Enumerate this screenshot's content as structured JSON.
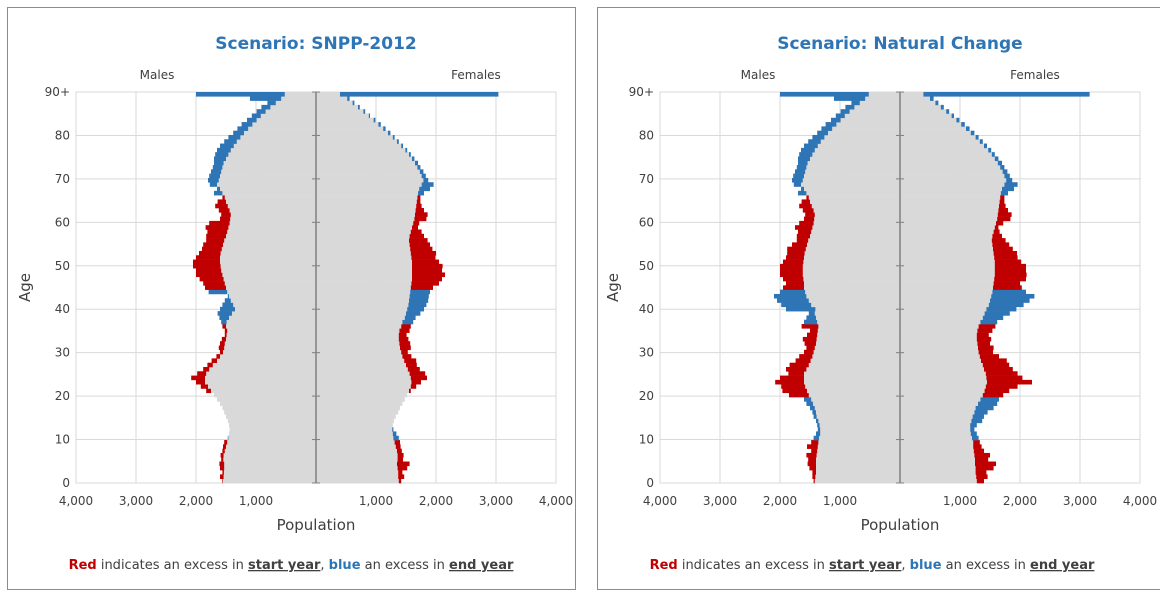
{
  "chart_data": [
    {
      "type": "bar",
      "orientation": "horizontal",
      "title": "Scenario: SNPP-2012",
      "left_label": "Males",
      "right_label": "Females",
      "ylabel": "Age",
      "xlabel": "Population",
      "y_ticks": [
        "0",
        "10",
        "20",
        "30",
        "40",
        "50",
        "60",
        "70",
        "80",
        "90+"
      ],
      "x_ticks": [
        "4,000",
        "3,000",
        "2,000",
        "1,000",
        "",
        "1,000",
        "2,000",
        "3,000",
        "4,000"
      ],
      "xlim": [
        -4000,
        4000
      ],
      "ylim": [
        0,
        90
      ],
      "grid": true,
      "legend": "none",
      "colors": {
        "base": "#d9d9d9",
        "start_excess": "#c00000",
        "end_excess": "#2e75b6"
      },
      "caption": {
        "red": "Red",
        "t1": " indicates an excess in ",
        "start": "start year",
        "t2": ", ",
        "blue": "blue",
        "t3": " an excess in ",
        "end": "end year"
      },
      "series": [
        {
          "name": "Males",
          "shared": [
            1550,
            1540,
            1535,
            1530,
            1530,
            1545,
            1540,
            1520,
            1500,
            1480,
            1460,
            1450,
            1440,
            1450,
            1470,
            1500,
            1530,
            1560,
            1600,
            1650,
            1700,
            1750,
            1800,
            1850,
            1850,
            1830,
            1780,
            1720,
            1650,
            1600,
            1550,
            1530,
            1520,
            1500,
            1490,
            1480,
            1500,
            1490,
            1450,
            1400,
            1350,
            1380,
            1420,
            1450,
            1480,
            1500,
            1520,
            1540,
            1560,
            1580,
            1590,
            1600,
            1600,
            1590,
            1570,
            1550,
            1530,
            1500,
            1480,
            1460,
            1440,
            1430,
            1420,
            1440,
            1470,
            1500,
            1520,
            1560,
            1600,
            1650,
            1620,
            1600,
            1580,
            1560,
            1540,
            1500,
            1460,
            1420,
            1370,
            1320,
            1260,
            1200,
            1130,
            1060,
            990,
            920,
            840,
            760,
            670,
            580,
            520
          ],
          "ends": [
            1560,
            1600,
            1560,
            1600,
            1610,
            1580,
            1590,
            1560,
            1550,
            1530,
            1470,
            1440,
            1390,
            1370,
            1360,
            1390,
            1430,
            1460,
            1530,
            1600,
            1690,
            1830,
            1920,
            2000,
            2080,
            1980,
            1880,
            1810,
            1740,
            1660,
            1600,
            1620,
            1600,
            1570,
            1520,
            1520,
            1560,
            1580,
            1610,
            1640,
            1600,
            1560,
            1520,
            1470,
            1790,
            1850,
            1880,
            1940,
            2000,
            2000,
            2050,
            2050,
            2000,
            1950,
            1900,
            1880,
            1830,
            1830,
            1810,
            1840,
            1780,
            1600,
            1580,
            1620,
            1680,
            1640,
            1560,
            1700,
            1650,
            1770,
            1800,
            1780,
            1750,
            1720,
            1700,
            1700,
            1680,
            1650,
            1600,
            1530,
            1460,
            1380,
            1310,
            1240,
            1150,
            1070,
            990,
            910,
            810,
            1100,
            2000
          ]
        },
        {
          "name": "Females",
          "shared": [
            1380,
            1370,
            1370,
            1360,
            1350,
            1360,
            1360,
            1350,
            1330,
            1310,
            1290,
            1280,
            1270,
            1280,
            1300,
            1330,
            1370,
            1400,
            1440,
            1480,
            1520,
            1550,
            1580,
            1590,
            1580,
            1560,
            1530,
            1500,
            1470,
            1440,
            1420,
            1400,
            1390,
            1380,
            1380,
            1390,
            1420,
            1440,
            1480,
            1500,
            1520,
            1540,
            1550,
            1560,
            1570,
            1580,
            1590,
            1600,
            1600,
            1600,
            1600,
            1600,
            1590,
            1580,
            1570,
            1560,
            1550,
            1560,
            1580,
            1600,
            1620,
            1640,
            1650,
            1660,
            1670,
            1680,
            1690,
            1700,
            1720,
            1760,
            1790,
            1760,
            1730,
            1690,
            1650,
            1600,
            1550,
            1490,
            1420,
            1350,
            1280,
            1200,
            1120,
            1040,
            960,
            880,
            790,
            700,
            610,
            520,
            400
          ],
          "ends": [
            1420,
            1470,
            1440,
            1520,
            1560,
            1450,
            1460,
            1430,
            1410,
            1400,
            1380,
            1340,
            1290,
            1270,
            1300,
            1330,
            1350,
            1380,
            1410,
            1440,
            1490,
            1580,
            1670,
            1750,
            1850,
            1820,
            1730,
            1680,
            1670,
            1590,
            1530,
            1580,
            1570,
            1540,
            1510,
            1560,
            1580,
            1620,
            1660,
            1740,
            1800,
            1840,
            1870,
            1880,
            1900,
            1950,
            2050,
            2100,
            2150,
            2100,
            2110,
            2050,
            1990,
            2000,
            1940,
            1900,
            1860,
            1800,
            1760,
            1700,
            1720,
            1840,
            1860,
            1800,
            1760,
            1740,
            1740,
            1800,
            1900,
            1960,
            1870,
            1830,
            1790,
            1740,
            1700,
            1640,
            1580,
            1520,
            1450,
            1380,
            1310,
            1240,
            1160,
            1080,
            990,
            900,
            820,
            730,
            640,
            560,
            3040
          ]
        }
      ]
    },
    {
      "type": "bar",
      "orientation": "horizontal",
      "title": "Scenario: Natural Change",
      "left_label": "Males",
      "right_label": "Females",
      "ylabel": "Age",
      "xlabel": "Population",
      "y_ticks": [
        "0",
        "10",
        "20",
        "30",
        "40",
        "50",
        "60",
        "70",
        "80",
        "90+"
      ],
      "x_ticks": [
        "4,000",
        "3,000",
        "2,000",
        "1,000",
        "",
        "1,000",
        "2,000",
        "3,000",
        "4,000"
      ],
      "xlim": [
        -4000,
        4000
      ],
      "ylim": [
        0,
        90
      ],
      "grid": true,
      "legend": "none",
      "colors": {
        "base": "#d9d9d9",
        "start_excess": "#c00000",
        "end_excess": "#2e75b6"
      },
      "caption": {
        "red": "Red",
        "t1": " indicates an excess in ",
        "start": "start year",
        "t2": ", ",
        "blue": "blue",
        "t3": " an excess in ",
        "end": "end year"
      },
      "series": [
        {
          "name": "Males",
          "shared": [
            1420,
            1410,
            1400,
            1400,
            1400,
            1400,
            1390,
            1380,
            1370,
            1360,
            1350,
            1330,
            1330,
            1340,
            1360,
            1390,
            1400,
            1420,
            1450,
            1480,
            1520,
            1550,
            1580,
            1600,
            1600,
            1600,
            1560,
            1520,
            1490,
            1460,
            1440,
            1420,
            1400,
            1390,
            1380,
            1370,
            1360,
            1380,
            1400,
            1420,
            1410,
            1480,
            1520,
            1560,
            1580,
            1600,
            1600,
            1610,
            1620,
            1620,
            1620,
            1610,
            1600,
            1590,
            1570,
            1550,
            1530,
            1500,
            1480,
            1460,
            1440,
            1430,
            1420,
            1440,
            1470,
            1500,
            1520,
            1560,
            1600,
            1650,
            1620,
            1600,
            1580,
            1560,
            1540,
            1500,
            1460,
            1420,
            1370,
            1320,
            1260,
            1200,
            1130,
            1060,
            990,
            920,
            840,
            760,
            670,
            580,
            520
          ],
          "ends": [
            1440,
            1460,
            1460,
            1510,
            1540,
            1530,
            1560,
            1480,
            1550,
            1480,
            1440,
            1400,
            1370,
            1380,
            1400,
            1440,
            1460,
            1500,
            1560,
            1600,
            1850,
            1960,
            1980,
            2080,
            2000,
            1860,
            1900,
            1840,
            1740,
            1680,
            1600,
            1560,
            1590,
            1620,
            1550,
            1500,
            1640,
            1600,
            1560,
            1520,
            1900,
            1980,
            2050,
            2100,
            2000,
            1950,
            1900,
            1950,
            2000,
            2000,
            2000,
            1950,
            1900,
            1880,
            1880,
            1800,
            1720,
            1720,
            1700,
            1750,
            1680,
            1600,
            1580,
            1620,
            1680,
            1640,
            1560,
            1700,
            1650,
            1770,
            1800,
            1780,
            1750,
            1720,
            1700,
            1700,
            1680,
            1650,
            1600,
            1530,
            1460,
            1380,
            1310,
            1240,
            1150,
            1070,
            990,
            910,
            810,
            1100,
            2000
          ]
        },
        {
          "name": "Females",
          "shared": [
            1280,
            1270,
            1260,
            1260,
            1250,
            1250,
            1240,
            1230,
            1220,
            1220,
            1200,
            1180,
            1170,
            1170,
            1190,
            1210,
            1240,
            1260,
            1300,
            1340,
            1380,
            1410,
            1430,
            1450,
            1440,
            1430,
            1400,
            1380,
            1350,
            1330,
            1310,
            1300,
            1290,
            1280,
            1280,
            1290,
            1310,
            1340,
            1380,
            1410,
            1440,
            1480,
            1500,
            1520,
            1540,
            1550,
            1560,
            1570,
            1580,
            1580,
            1580,
            1580,
            1570,
            1560,
            1550,
            1540,
            1530,
            1540,
            1560,
            1580,
            1600,
            1620,
            1630,
            1640,
            1650,
            1660,
            1670,
            1680,
            1700,
            1740,
            1770,
            1740,
            1710,
            1670,
            1630,
            1580,
            1530,
            1470,
            1400,
            1330,
            1260,
            1180,
            1100,
            1020,
            940,
            860,
            770,
            680,
            590,
            500,
            390
          ],
          "ends": [
            1400,
            1460,
            1440,
            1560,
            1600,
            1470,
            1500,
            1400,
            1360,
            1330,
            1310,
            1280,
            1240,
            1280,
            1370,
            1400,
            1460,
            1560,
            1620,
            1650,
            1720,
            1820,
            1960,
            2200,
            2040,
            1960,
            1880,
            1820,
            1780,
            1650,
            1550,
            1560,
            1500,
            1520,
            1480,
            1540,
            1590,
            1620,
            1720,
            1830,
            1940,
            2060,
            2160,
            2240,
            2100,
            2030,
            2000,
            2100,
            2110,
            2100,
            2100,
            2020,
            1960,
            1950,
            1880,
            1820,
            1760,
            1700,
            1660,
            1640,
            1720,
            1840,
            1860,
            1800,
            1760,
            1740,
            1740,
            1800,
            1900,
            1960,
            1870,
            1830,
            1790,
            1740,
            1700,
            1640,
            1580,
            1520,
            1450,
            1380,
            1310,
            1240,
            1160,
            1080,
            990,
            900,
            820,
            730,
            640,
            560,
            3160
          ]
        }
      ]
    }
  ]
}
